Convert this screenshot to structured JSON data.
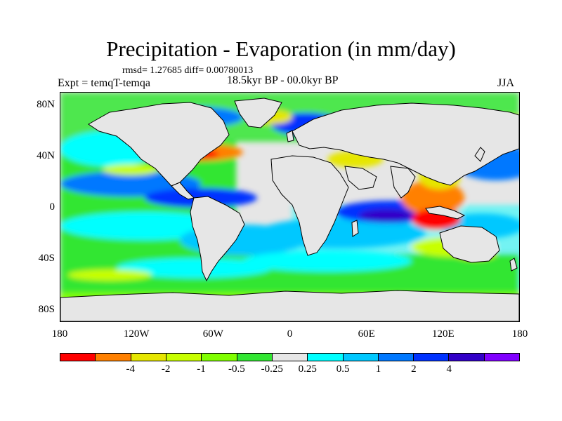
{
  "title": "Precipitation - Evaporation (in mm/day)",
  "stats": "rmsd= 1.27685 diff= 0.00780013",
  "experiment": "Expt = temqT-temqa",
  "period": "18.5kyr BP - 00.0kyr BP",
  "season": "JJA",
  "map": {
    "lon_range": [
      -180,
      180
    ],
    "lat_range": [
      -90,
      90
    ],
    "lat_ticks": [
      {
        "value": 80,
        "label": "80N"
      },
      {
        "value": 40,
        "label": "40N"
      },
      {
        "value": 0,
        "label": "0"
      },
      {
        "value": -40,
        "label": "40S"
      },
      {
        "value": -80,
        "label": "80S"
      }
    ],
    "lon_ticks": [
      {
        "value": -180,
        "label": "180"
      },
      {
        "value": -120,
        "label": "120W"
      },
      {
        "value": -60,
        "label": "60W"
      },
      {
        "value": 0,
        "label": "0"
      },
      {
        "value": 60,
        "label": "60E"
      },
      {
        "value": 120,
        "label": "120E"
      },
      {
        "value": 180,
        "label": "180"
      }
    ],
    "background_color": "#e6e6e6"
  },
  "colorbar": {
    "colors": [
      "#ff0000",
      "#ff8000",
      "#e6e600",
      "#c8ff00",
      "#80ff00",
      "#32e632",
      "#e6e6e6",
      "#00ffff",
      "#00c8ff",
      "#0078ff",
      "#0032ff",
      "#3200c8",
      "#8000ff"
    ],
    "labels": [
      "-4",
      "-2",
      "-1",
      "-0.5",
      "-0.25",
      "0.25",
      "0.5",
      "1",
      "2",
      "4"
    ]
  }
}
